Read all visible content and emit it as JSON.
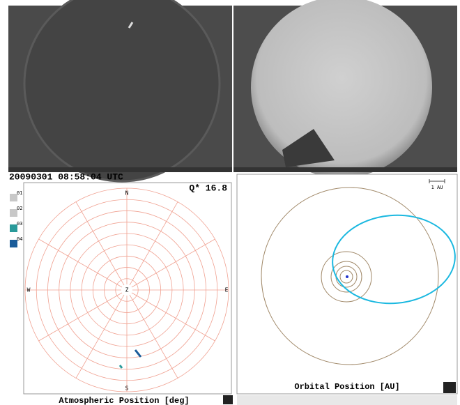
{
  "timestamp": "20090301 08:58:04 UTC",
  "quality": "Q* 16.8",
  "stations": [
    "01",
    "02",
    "03",
    "04"
  ],
  "compass": {
    "north": "N",
    "east": "E",
    "south": "S",
    "west": "W",
    "zenith": "Z"
  },
  "atmospheric_caption": "Atmospheric Position [deg]",
  "orbital_caption": "Orbital Position [AU]",
  "scale_label": "1 AU"
}
